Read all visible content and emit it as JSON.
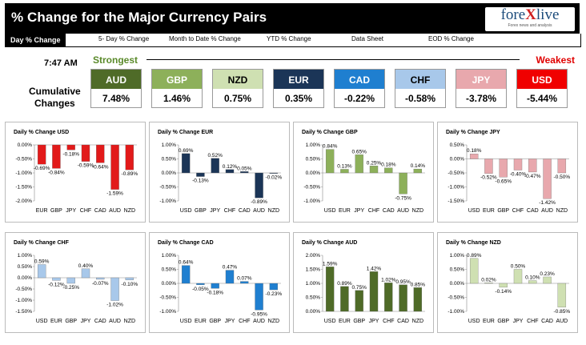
{
  "header": {
    "title": "% Change for the Major Currency Pairs",
    "logo_a": "fore",
    "logo_x": "X",
    "logo_b": "live",
    "logo_tagline": "Forex news and analysis"
  },
  "tabs": [
    "Day % Change",
    "5- Day % Change",
    "Month to Date % Change",
    "YTD % Change",
    "Data Sheet",
    "EOD % Change"
  ],
  "time": "7:47 AM",
  "strength": {
    "strongest": "Strongest",
    "weakest": "Weakest",
    "label_line1": "Cumulative",
    "label_line2": "Changes"
  },
  "currencies": [
    {
      "code": "AUD",
      "value": "7.48%",
      "color": "#4f6b28",
      "text_color": "#ffffff"
    },
    {
      "code": "GBP",
      "value": "1.46%",
      "color": "#8db05a",
      "text_color": "#ffffff"
    },
    {
      "code": "NZD",
      "value": "0.75%",
      "color": "#cfe0b2",
      "text_color": "#000000"
    },
    {
      "code": "EUR",
      "value": "0.35%",
      "color": "#1b3557",
      "text_color": "#ffffff"
    },
    {
      "code": "CAD",
      "value": "-0.22%",
      "color": "#1f7fd0",
      "text_color": "#ffffff"
    },
    {
      "code": "CHF",
      "value": "-0.58%",
      "color": "#a8c8ea",
      "text_color": "#000000"
    },
    {
      "code": "JPY",
      "value": "-3.78%",
      "color": "#e8a8ad",
      "text_color": "#ffffff"
    },
    {
      "code": "USD",
      "value": "-5.44%",
      "color": "#f00000",
      "text_color": "#ffffff"
    }
  ],
  "chart_data": [
    {
      "type": "bar",
      "title": "Daily % Change USD",
      "categories": [
        "EUR",
        "GBP",
        "JPY",
        "CHF",
        "CAD",
        "AUD",
        "NZD"
      ],
      "values": [
        -0.69,
        -0.84,
        -0.18,
        -0.59,
        -0.64,
        -1.59,
        -0.89
      ],
      "labels": [
        "-0.69%",
        "-0.84%",
        "-0.18%",
        "-0.59%",
        "-0.64%",
        "-1.59%",
        "-0.89%"
      ],
      "ylim": [
        -2.0,
        0.0
      ],
      "ticks": [
        0,
        -0.5,
        -1.0,
        -1.5,
        -2.0
      ],
      "tick_labels": [
        "0.00%",
        "-0.50%",
        "-1.00%",
        "-1.50%",
        "-2.00%"
      ],
      "color": "#e21a1a"
    },
    {
      "type": "bar",
      "title": "Daily % Change EUR",
      "categories": [
        "USD",
        "GBP",
        "JPY",
        "CHF",
        "CAD",
        "AUD",
        "NZD"
      ],
      "values": [
        0.69,
        -0.13,
        0.52,
        0.12,
        0.05,
        -0.89,
        -0.02
      ],
      "labels": [
        "0.69%",
        "-0.13%",
        "0.52%",
        "0.12%",
        "0.05%",
        "-0.89%",
        "-0.02%"
      ],
      "ylim": [
        -1.0,
        1.0
      ],
      "ticks": [
        1.0,
        0.5,
        0,
        -0.5,
        -1.0
      ],
      "tick_labels": [
        "1.00%",
        "0.50%",
        "0.00%",
        "-0.50%",
        "-1.00%"
      ],
      "color": "#1b3557"
    },
    {
      "type": "bar",
      "title": "Daily % Change GBP",
      "categories": [
        "USD",
        "EUR",
        "JPY",
        "CHF",
        "CAD",
        "AUD",
        "NZD"
      ],
      "values": [
        0.84,
        0.13,
        0.65,
        0.25,
        0.18,
        -0.75,
        0.14
      ],
      "labels": [
        "0.84%",
        "0.13%",
        "0.65%",
        "0.25%",
        "0.18%",
        "-0.75%",
        "0.14%"
      ],
      "ylim": [
        -1.0,
        1.0
      ],
      "ticks": [
        1.0,
        0.5,
        0,
        -0.5,
        -1.0
      ],
      "tick_labels": [
        "1.00%",
        "0.50%",
        "0.00%",
        "-0.50%",
        "-1.00%"
      ],
      "color": "#8db05a"
    },
    {
      "type": "bar",
      "title": "Daily % Change JPY",
      "categories": [
        "USD",
        "EUR",
        "GBP",
        "CHF",
        "CAD",
        "AUD",
        "NZD"
      ],
      "values": [
        0.18,
        -0.52,
        -0.65,
        -0.4,
        -0.47,
        -1.42,
        -0.5
      ],
      "labels": [
        "0.18%",
        "-0.52%",
        "-0.65%",
        "-0.40%",
        "-0.47%",
        "-1.42%",
        "-0.50%"
      ],
      "ylim": [
        -1.5,
        0.5
      ],
      "ticks": [
        0.5,
        0,
        -0.5,
        -1.0,
        -1.5
      ],
      "tick_labels": [
        "0.50%",
        "0.00%",
        "-0.50%",
        "-1.00%",
        "-1.50%"
      ],
      "color": "#e8a8ad"
    },
    {
      "type": "bar",
      "title": "Daily % Change CHF",
      "categories": [
        "USD",
        "EUR",
        "GBP",
        "JPY",
        "CAD",
        "AUD",
        "NZD"
      ],
      "values": [
        0.59,
        -0.12,
        -0.25,
        0.4,
        -0.07,
        -1.02,
        -0.1
      ],
      "labels": [
        "0.59%",
        "-0.12%",
        "-0.25%",
        "0.40%",
        "-0.07%",
        "-1.02%",
        "-0.10%"
      ],
      "ylim": [
        -1.5,
        1.0
      ],
      "ticks": [
        1.0,
        0.5,
        0,
        -0.5,
        -1.0,
        -1.5
      ],
      "tick_labels": [
        "1.00%",
        "0.50%",
        "0.00%",
        "-0.50%",
        "-1.00%",
        "-1.50%"
      ],
      "color": "#a8c8ea"
    },
    {
      "type": "bar",
      "title": "Daily % Change CAD",
      "categories": [
        "USD",
        "EUR",
        "GBP",
        "JPY",
        "CHF",
        "AUD",
        "NZD"
      ],
      "values": [
        0.64,
        -0.05,
        -0.18,
        0.47,
        0.07,
        -0.95,
        -0.23
      ],
      "labels": [
        "0.64%",
        "-0.05%",
        "-0.18%",
        "0.47%",
        "0.07%",
        "-0.95%",
        "-0.23%"
      ],
      "ylim": [
        -1.0,
        1.0
      ],
      "ticks": [
        1.0,
        0.5,
        0,
        -0.5,
        -1.0
      ],
      "tick_labels": [
        "1.00%",
        "0.50%",
        "0.00%",
        "-0.50%",
        "-1.00%"
      ],
      "color": "#1f7fd0"
    },
    {
      "type": "bar",
      "title": "Daily % Change AUD",
      "categories": [
        "USD",
        "EUR",
        "GBP",
        "JPY",
        "CHF",
        "CAD",
        "NZD"
      ],
      "values": [
        1.59,
        0.89,
        0.75,
        1.42,
        1.02,
        0.95,
        0.85
      ],
      "labels": [
        "1.59%",
        "0.89%",
        "0.75%",
        "1.42%",
        "1.02%",
        "0.95%",
        "0.85%"
      ],
      "ylim": [
        0.0,
        2.0
      ],
      "ticks": [
        2.0,
        1.5,
        1.0,
        0.5,
        0
      ],
      "tick_labels": [
        "2.00%",
        "1.50%",
        "1.00%",
        "0.50%",
        "0.00%"
      ],
      "color": "#4f6b28"
    },
    {
      "type": "bar",
      "title": "Daily % Change NZD",
      "categories": [
        "USD",
        "EUR",
        "GBP",
        "JPY",
        "CHF",
        "CAD",
        "AUD"
      ],
      "values": [
        0.89,
        0.02,
        -0.14,
        0.5,
        0.1,
        0.23,
        -0.85
      ],
      "labels": [
        "0.89%",
        "0.02%",
        "-0.14%",
        "0.50%",
        "0.10%",
        "0.23%",
        "-0.85%"
      ],
      "ylim": [
        -1.0,
        1.0
      ],
      "ticks": [
        1.0,
        0.5,
        0,
        -0.5,
        -1.0
      ],
      "tick_labels": [
        "1.00%",
        "0.50%",
        "0.00%",
        "-0.50%",
        "-1.00%"
      ],
      "color": "#cfe0b2"
    }
  ]
}
